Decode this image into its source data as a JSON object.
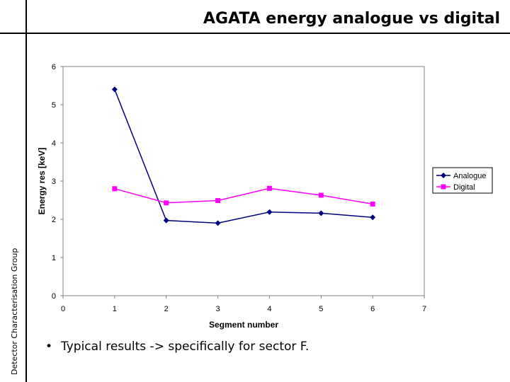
{
  "slide": {
    "title": "AGATA energy analogue vs digital",
    "side_label": "Detector Characterisation Group",
    "bullet": "Typical results -> specifically for sector F.",
    "bullet_symbol": "•"
  },
  "chart_data": {
    "type": "line",
    "title": "",
    "xlabel": "Segment number",
    "ylabel": "Energy res [keV]",
    "xlim": [
      0,
      7
    ],
    "ylim": [
      0,
      6
    ],
    "x_ticks": [
      0,
      1,
      2,
      3,
      4,
      5,
      6,
      7
    ],
    "y_ticks": [
      0,
      1,
      2,
      3,
      4,
      5,
      6
    ],
    "grid": false,
    "legend_position": "right",
    "series": [
      {
        "name": "Analogue",
        "color": "#000080",
        "marker": "diamond",
        "x": [
          1,
          2,
          3,
          4,
          5,
          6
        ],
        "y": [
          5.4,
          1.97,
          1.9,
          2.19,
          2.16,
          2.05
        ]
      },
      {
        "name": "Digital",
        "color": "#FF00FF",
        "marker": "square",
        "x": [
          1,
          2,
          3,
          4,
          5,
          6
        ],
        "y": [
          2.8,
          2.43,
          2.49,
          2.81,
          2.63,
          2.4
        ]
      }
    ]
  }
}
